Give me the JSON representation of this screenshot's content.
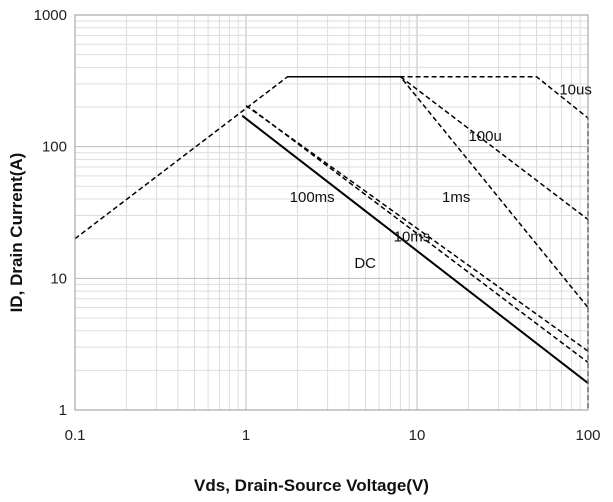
{
  "chart_data": {
    "type": "line",
    "x_scale": "log",
    "y_scale": "log",
    "xlim": [
      0.1,
      100
    ],
    "ylim": [
      1,
      1000
    ],
    "grid": true,
    "xlabel": "Vds, Drain-Source Voltage(V)",
    "ylabel": "ID, Drain Current(A)",
    "x_ticks": [
      "0.1",
      "1",
      "10",
      "100"
    ],
    "y_ticks": [
      "1",
      "10",
      "100",
      "1000"
    ],
    "series": [
      {
        "name": "DC",
        "dash": "solid",
        "x": [
          0.95,
          100
        ],
        "y": [
          172,
          1.6
        ]
      },
      {
        "name": "10ms",
        "dash": "dashed",
        "x": [
          1.1,
          100
        ],
        "y": [
          190,
          2.3
        ]
      },
      {
        "name": "100ms",
        "dash": "dashed",
        "x": [
          1.0,
          100
        ],
        "y": [
          205,
          2.8
        ]
      },
      {
        "name": "1ms",
        "dash": "dashed",
        "x": [
          0.1,
          1.75,
          8,
          100
        ],
        "y": [
          20,
          340,
          340,
          6
        ]
      },
      {
        "name": "100u",
        "dash": "dashed",
        "x": [
          8,
          100
        ],
        "y": [
          340,
          28
        ]
      },
      {
        "name": "10us",
        "dash": "dashed",
        "x": [
          1.75,
          50,
          100,
          100
        ],
        "y": [
          340,
          340,
          165,
          1
        ]
      }
    ],
    "annotations": [
      {
        "text": "10us",
        "x": 68,
        "y": 250
      },
      {
        "text": "100u",
        "x": 20,
        "y": 110
      },
      {
        "text": "1ms",
        "x": 14,
        "y": 38
      },
      {
        "text": "100ms",
        "x": 1.8,
        "y": 38
      },
      {
        "text": "10ms",
        "x": 7.3,
        "y": 19
      },
      {
        "text": "DC",
        "x": 4.3,
        "y": 12
      }
    ]
  }
}
